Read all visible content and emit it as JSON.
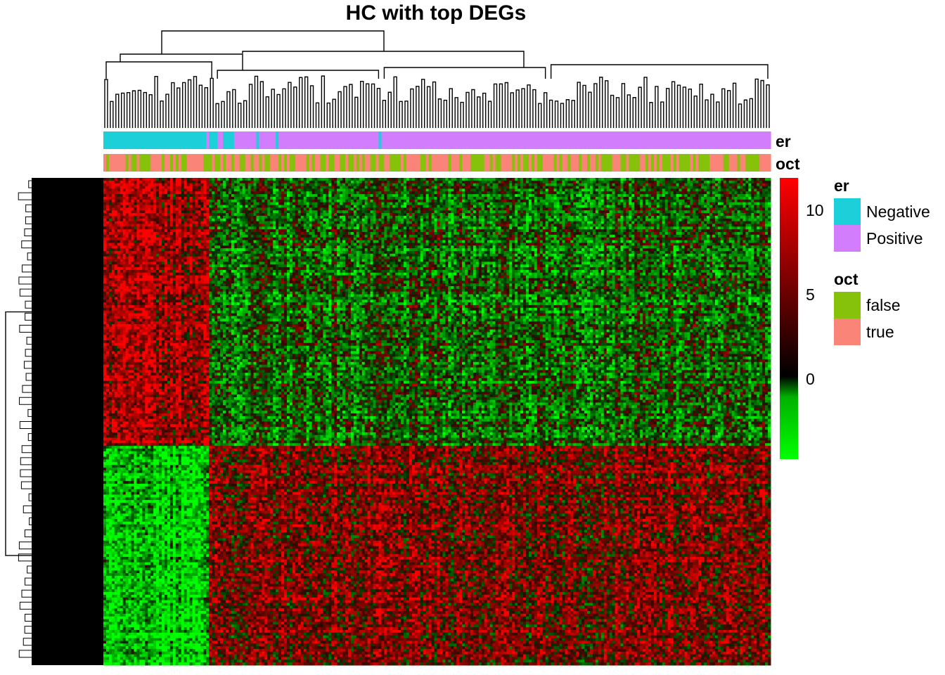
{
  "chart_data": {
    "type": "heatmap",
    "title": "HC with top DEGs",
    "annotation_tracks": [
      "er",
      "oct"
    ],
    "color_scale": {
      "ticks": [
        "10",
        "5",
        "0"
      ],
      "min": -5,
      "max": 12,
      "colors": [
        "#00ff00",
        "#000000",
        "#ff0000"
      ]
    },
    "legends": [
      {
        "title": "er",
        "items": [
          {
            "label": "Negative",
            "color": "#1ccfd9"
          },
          {
            "label": "Positive",
            "color": "#d17dfc"
          }
        ]
      },
      {
        "title": "oct",
        "items": [
          {
            "label": "false",
            "color": "#86c10b"
          },
          {
            "label": "true",
            "color": "#fb8478"
          }
        ]
      }
    ],
    "er_negative_columns": [
      0,
      1,
      2,
      3,
      4,
      5,
      6,
      7,
      8,
      9,
      10,
      11,
      12,
      13,
      14,
      15,
      16,
      17,
      18,
      19,
      20,
      21,
      22,
      23,
      24,
      25,
      26,
      27,
      28,
      29,
      30,
      31,
      32,
      33,
      34,
      35,
      36,
      38,
      39,
      40,
      43,
      44,
      45,
      46,
      55,
      62,
      99
    ],
    "n_columns": 240,
    "n_row_clusters": 2
  }
}
